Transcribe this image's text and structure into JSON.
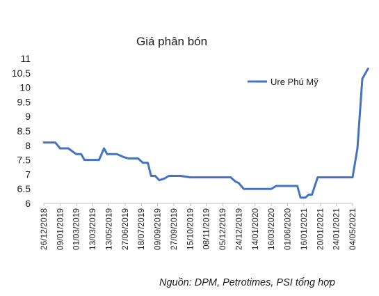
{
  "chart_data": {
    "type": "line",
    "title": "Giá phân bón",
    "xlabel": "",
    "ylabel": "",
    "ylim": [
      6,
      11
    ],
    "yticks": [
      "6",
      "6.5",
      "7",
      "7.5",
      "8",
      "8.5",
      "9",
      "9.5",
      "10",
      "10.5",
      "11"
    ],
    "grid": false,
    "legend_position": "top-right",
    "categories": [
      "26/12/2018",
      "09/01/2019",
      "01/03/2019",
      "13/03/2019",
      "13/05/2019",
      "27/06/2019",
      "18/07/2019",
      "09/09/2019",
      "27/09/2019",
      "15/10/2019",
      "08/11/2019",
      "05/12/2019",
      "24/12/2019",
      "14/01/2020",
      "16/03/2020",
      "01/06/2020",
      "16/01/2021",
      "20/01/2021",
      "24/01/2021",
      "04/05/2021"
    ],
    "series": [
      {
        "name": "Ure Phú Mỹ",
        "color": "#4472c4",
        "points": [
          [
            0,
            8.1
          ],
          [
            0.7,
            8.1
          ],
          [
            1.0,
            7.9
          ],
          [
            1.5,
            7.9
          ],
          [
            2.0,
            7.7
          ],
          [
            2.3,
            7.7
          ],
          [
            2.5,
            7.5
          ],
          [
            3.0,
            7.5
          ],
          [
            3.4,
            7.5
          ],
          [
            3.7,
            7.9
          ],
          [
            3.9,
            7.7
          ],
          [
            4.5,
            7.7
          ],
          [
            4.9,
            7.6
          ],
          [
            5.2,
            7.55
          ],
          [
            5.8,
            7.55
          ],
          [
            6.1,
            7.4
          ],
          [
            6.4,
            7.4
          ],
          [
            6.6,
            6.95
          ],
          [
            6.85,
            6.95
          ],
          [
            7.1,
            6.8
          ],
          [
            7.4,
            6.85
          ],
          [
            7.7,
            6.95
          ],
          [
            8.4,
            6.95
          ],
          [
            9.0,
            6.9
          ],
          [
            11.5,
            6.9
          ],
          [
            11.8,
            6.75
          ],
          [
            12.0,
            6.7
          ],
          [
            12.3,
            6.5
          ],
          [
            14.0,
            6.5
          ],
          [
            14.3,
            6.6
          ],
          [
            15.6,
            6.6
          ],
          [
            15.8,
            6.2
          ],
          [
            16.1,
            6.2
          ],
          [
            16.3,
            6.3
          ],
          [
            16.5,
            6.3
          ],
          [
            16.85,
            6.9
          ],
          [
            17.0,
            6.9
          ],
          [
            19.0,
            6.9
          ],
          [
            19.3,
            7.9
          ],
          [
            19.6,
            10.3
          ],
          [
            19.95,
            10.65
          ]
        ]
      }
    ]
  },
  "source": "Nguồn: DPM, Petrotimes, PSI tổng hợp"
}
